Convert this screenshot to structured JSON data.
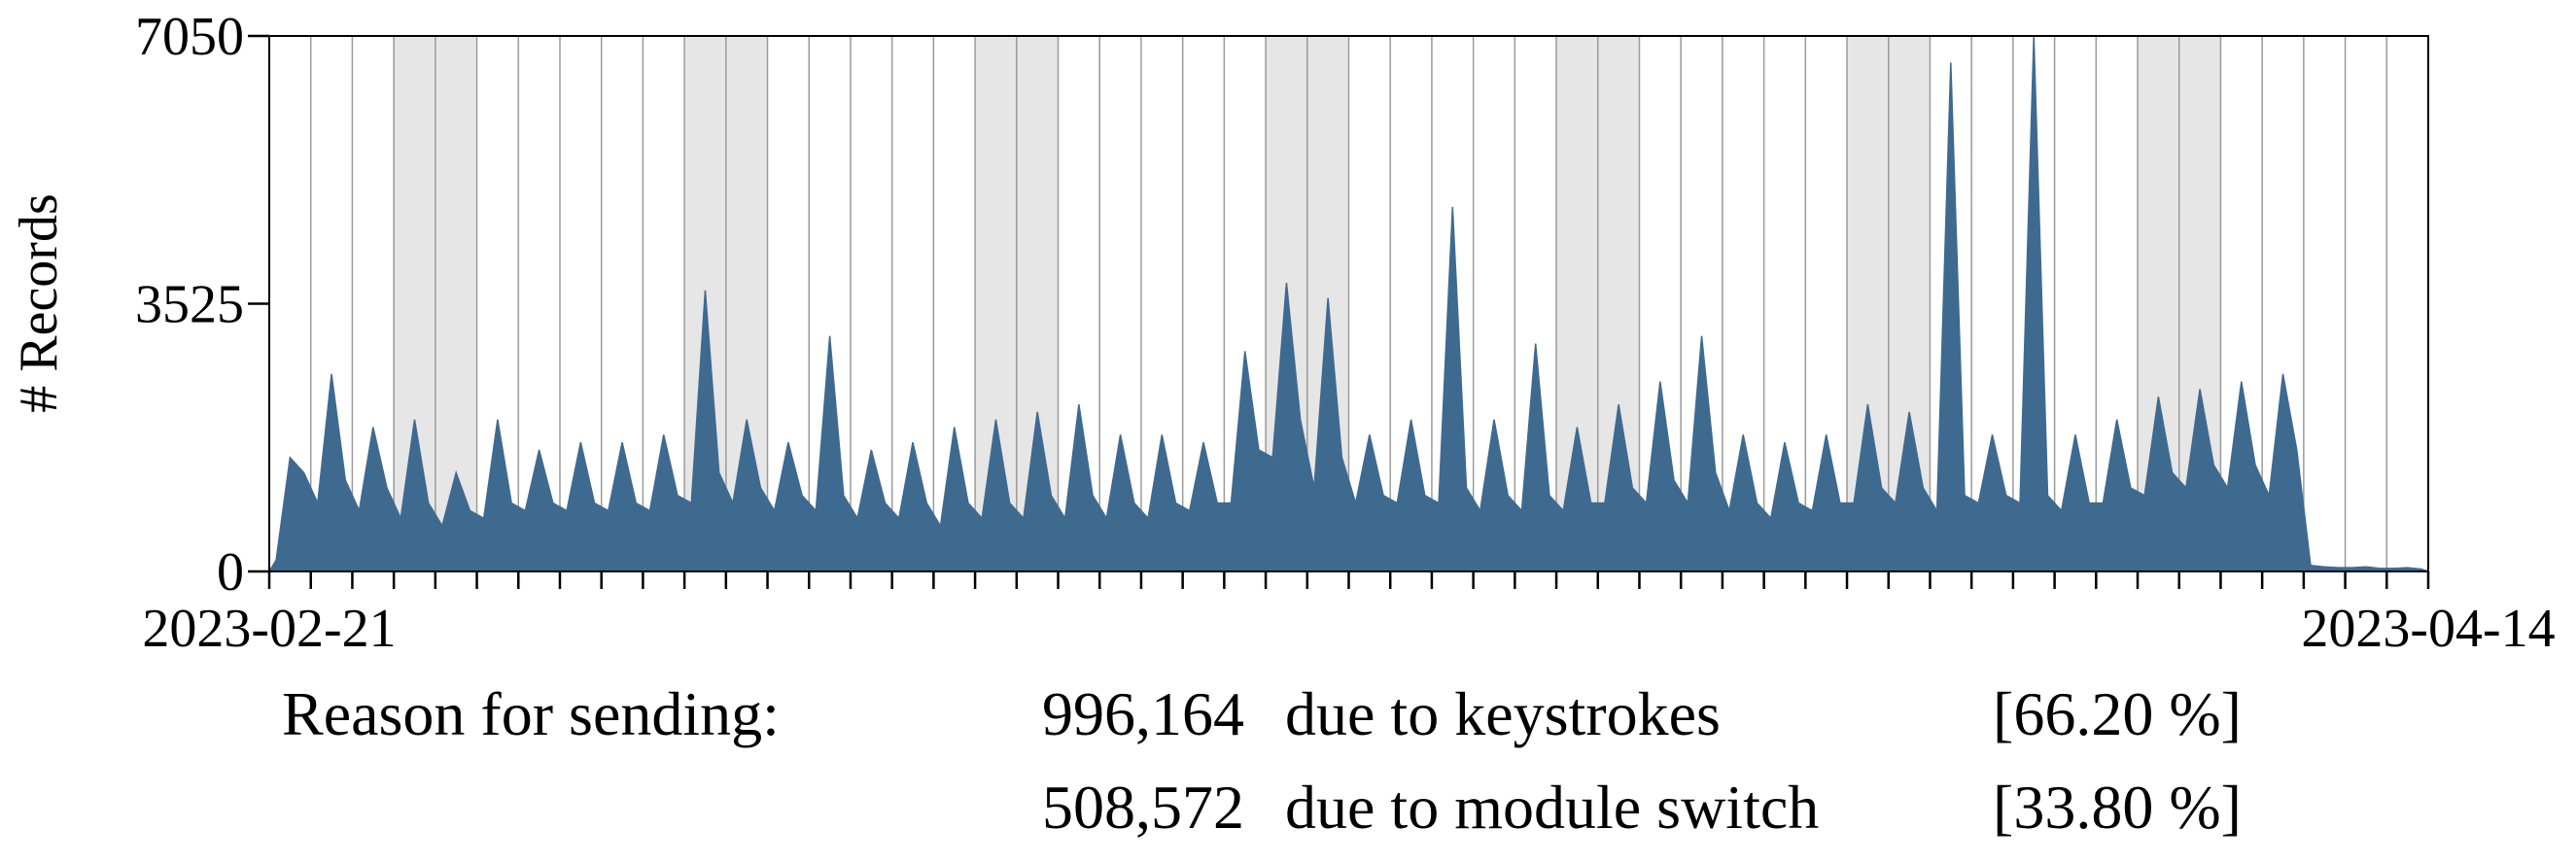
{
  "chart_data": {
    "type": "area",
    "y_label": "# Records",
    "color": "#3f6a90",
    "xlim": [
      "2023-02-21",
      "2023-04-14"
    ],
    "xticks": [
      "2023-02-21",
      "2023-04-14"
    ],
    "ylim": [
      0,
      7050
    ],
    "yticks": [
      0,
      3525,
      7050
    ],
    "values": [
      150,
      1500,
      1300,
      900,
      2600,
      1200,
      800,
      1900,
      1100,
      700,
      2000,
      900,
      600,
      1300,
      800,
      700,
      2000,
      900,
      800,
      1600,
      900,
      800,
      1700,
      900,
      800,
      1700,
      900,
      800,
      1800,
      1000,
      900,
      3700,
      1300,
      900,
      2000,
      1100,
      800,
      1700,
      1000,
      800,
      3100,
      1000,
      700,
      1600,
      900,
      700,
      1700,
      900,
      600,
      1900,
      900,
      700,
      2000,
      900,
      700,
      2100,
      1000,
      700,
      2200,
      1000,
      700,
      1800,
      900,
      700,
      1800,
      900,
      800,
      1700,
      900,
      900,
      2900,
      1600,
      1500,
      3800,
      2000,
      1100,
      3600,
      1500,
      900,
      1800,
      1000,
      900,
      2000,
      1000,
      900,
      4800,
      1100,
      800,
      2000,
      1000,
      800,
      3000,
      1000,
      800,
      1900,
      900,
      900,
      2200,
      1100,
      900,
      2500,
      1200,
      900,
      3100,
      1300,
      800,
      1800,
      900,
      700,
      1700,
      900,
      800,
      1800,
      900,
      900,
      2200,
      1100,
      900,
      2100,
      1100,
      800,
      6700,
      1000,
      900,
      1800,
      1000,
      900,
      7050,
      1000,
      800,
      1800,
      900,
      900,
      2000,
      1100,
      1000,
      2300,
      1300,
      1100,
      2400,
      1400,
      1100,
      2500,
      1400,
      1000,
      2600,
      1600,
      80,
      60,
      50,
      50,
      60,
      40,
      40,
      50,
      30
    ]
  },
  "summary": {
    "label": "Reason for sending:",
    "rows": [
      {
        "count": "996,164",
        "reason": "due to keystrokes",
        "share": "[66.20 %]"
      },
      {
        "count": "508,572",
        "reason": "due to module switch",
        "share": "[33.80 %]"
      }
    ]
  }
}
